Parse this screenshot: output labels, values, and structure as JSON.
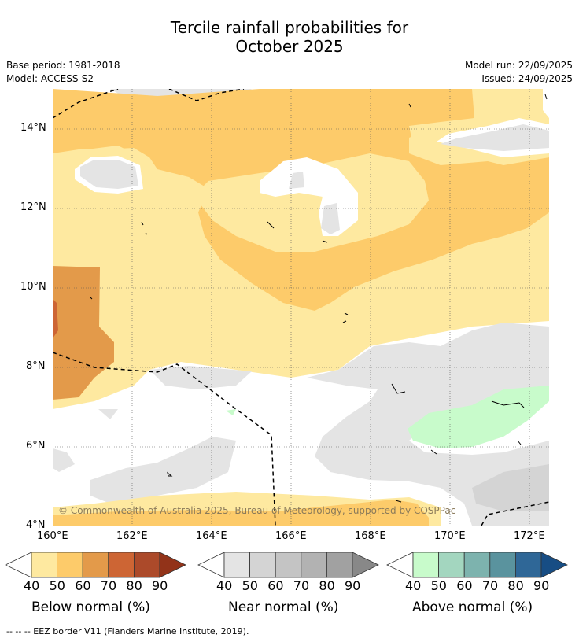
{
  "header": {
    "title_line1": "Tercile rainfall probabilities for",
    "title_line2": "October 2025",
    "base_period": "Base period: 1981-2018",
    "model": "Model: ACCESS-S2",
    "model_run": "Model run: 22/09/2025",
    "issued": "Issued: 24/09/2025"
  },
  "map": {
    "lat_labels": [
      "14°N",
      "12°N",
      "10°N",
      "8°N",
      "6°N",
      "4°N"
    ],
    "lon_labels": [
      "160°E",
      "162°E",
      "164°E",
      "166°E",
      "168°E",
      "170°E",
      "172°E"
    ],
    "copyright": "© Commonwealth of Australia 2025, Bureau of Meteorology, supported by COSPPac"
  },
  "legend": {
    "below": {
      "title": "Below normal (%)",
      "ticks": [
        "40",
        "50",
        "60",
        "70",
        "80",
        "90"
      ],
      "colors": [
        "#fee9a0",
        "#fdcb6a",
        "#e39a4a",
        "#cd6534",
        "#ac4a2a",
        "#923319"
      ]
    },
    "near": {
      "title": "Near normal (%)",
      "ticks": [
        "40",
        "50",
        "60",
        "70",
        "80",
        "90"
      ],
      "colors": [
        "#e4e4e4",
        "#d4d4d4",
        "#c4c4c4",
        "#b2b2b2",
        "#a1a1a1",
        "#888888"
      ]
    },
    "above": {
      "title": "Above normal (%)",
      "ticks": [
        "40",
        "50",
        "60",
        "70",
        "80",
        "90"
      ],
      "colors": [
        "#c8fbcb",
        "#a3d6bf",
        "#7db3ae",
        "#5a939e",
        "#2f6797",
        "#174d84"
      ]
    }
  },
  "footnote": "-- -- -- EEZ border V11 (Flanders Marine Institute, 2019)."
}
